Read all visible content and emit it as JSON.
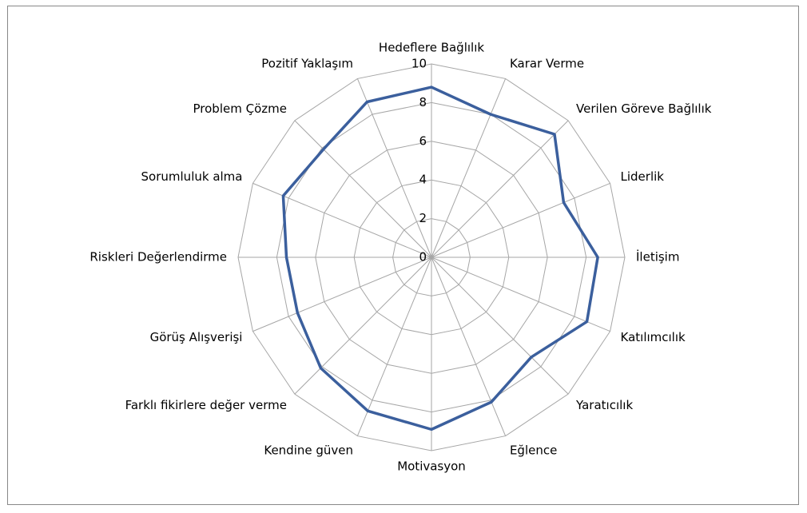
{
  "chart_data": {
    "type": "radar",
    "categories": [
      "Hedeflere Bağlılık",
      "Karar Verme",
      "Verilen Göreve Bağlılık",
      "Liderlik",
      "İletişim",
      "Katılımcılık",
      "Yaratıcılık",
      "Eğlence",
      "Motivasyon",
      "Kendine güven",
      "Farklı fikirlere değer verme",
      "Görüş Alışverişi",
      "Riskleri Değerlendirme",
      "Sorumluluk alma",
      "Problem Çözme",
      "Pozitif Yaklaşım"
    ],
    "values": [
      8.8,
      8,
      9,
      7.4,
      8.6,
      8.7,
      7.3,
      8.1,
      8.9,
      8.6,
      8.1,
      7.5,
      7.5,
      8.3,
      7.9,
      8.7
    ],
    "color": "#3b5f9d",
    "ylim": [
      0,
      10
    ],
    "yticks": [
      0,
      2,
      4,
      6,
      8,
      10
    ],
    "grid": true
  }
}
